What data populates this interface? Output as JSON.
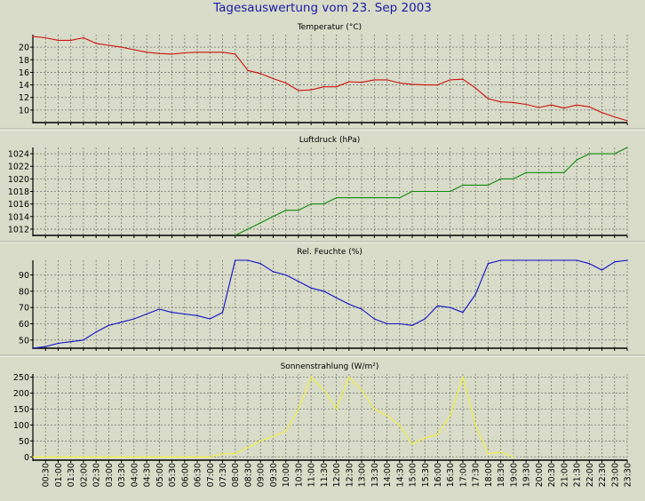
{
  "page_title": "Tagesauswertung vom 23. Sep 2003",
  "colors": {
    "background": "#d8dcc8",
    "plot_background": "#d8dcc8",
    "title": "#1a1aa8",
    "grid": "#7a7a7a",
    "axis": "#000000",
    "separator": "#a8ac98"
  },
  "x_ticks": [
    "00:30",
    "01:00",
    "01:30",
    "02:00",
    "02:30",
    "03:00",
    "03:30",
    "04:00",
    "04:30",
    "05:00",
    "05:30",
    "06:00",
    "06:30",
    "07:00",
    "07:30",
    "08:00",
    "08:30",
    "09:00",
    "09:30",
    "10:00",
    "10:30",
    "11:00",
    "11:30",
    "12:00",
    "12:30",
    "13:00",
    "13:30",
    "14:00",
    "14:30",
    "15:00",
    "15:30",
    "16:00",
    "16:30",
    "17:00",
    "17:30",
    "18:00",
    "18:30",
    "19:00",
    "19:30",
    "20:00",
    "20:30",
    "21:00",
    "21:30",
    "22:00",
    "22:30",
    "23:00",
    "23:30"
  ],
  "chart_data": [
    {
      "type": "line",
      "title": "Temperatur (°C)",
      "ylim": [
        8,
        22
      ],
      "yticks": [
        10,
        12,
        14,
        16,
        18,
        20
      ],
      "grid": true,
      "series": [
        {
          "color": "#d01010",
          "x": [
            "00:00",
            "00:30",
            "01:00",
            "01:30",
            "02:00",
            "02:30",
            "03:00",
            "03:30",
            "04:00",
            "04:30",
            "05:00",
            "05:30",
            "06:00",
            "06:30",
            "07:00",
            "07:30",
            "08:00",
            "08:30",
            "09:00",
            "09:30",
            "10:00",
            "10:30",
            "11:00",
            "11:30",
            "12:00",
            "12:30",
            "13:00",
            "13:30",
            "14:00",
            "14:30",
            "15:00",
            "15:30",
            "16:00",
            "16:30",
            "17:00",
            "17:30",
            "18:00",
            "18:30",
            "19:00",
            "19:30",
            "20:00",
            "20:30",
            "21:00",
            "21:30",
            "22:00",
            "22:30",
            "23:00",
            "23:30"
          ],
          "values": [
            21.7,
            21.5,
            21.1,
            21.1,
            21.5,
            20.6,
            20.3,
            20.0,
            19.6,
            19.2,
            19.0,
            18.9,
            19.1,
            19.2,
            19.2,
            19.2,
            18.9,
            16.3,
            15.8,
            15.0,
            14.3,
            13.1,
            13.2,
            13.7,
            13.7,
            14.5,
            14.4,
            14.8,
            14.8,
            14.3,
            14.1,
            14.0,
            14.0,
            14.8,
            14.9,
            13.5,
            11.8,
            11.3,
            11.2,
            10.9,
            10.4,
            10.8,
            10.3,
            10.8,
            10.5,
            9.6,
            8.9,
            8.3
          ]
        }
      ]
    },
    {
      "type": "line",
      "title": "Luftdruck (hPa)",
      "ylim": [
        1011,
        1025
      ],
      "yticks": [
        1012,
        1014,
        1016,
        1018,
        1020,
        1022,
        1024
      ],
      "grid": true,
      "series": [
        {
          "color": "#108a10",
          "x": [
            "08:00",
            "08:30",
            "09:00",
            "09:30",
            "10:00",
            "10:30",
            "11:00",
            "11:30",
            "12:00",
            "12:30",
            "13:00",
            "13:30",
            "14:00",
            "14:30",
            "15:00",
            "15:30",
            "16:00",
            "16:30",
            "17:00",
            "17:30",
            "18:00",
            "18:30",
            "19:00",
            "19:30",
            "20:00",
            "20:30",
            "21:00",
            "21:30",
            "22:00",
            "22:30",
            "23:00",
            "23:30"
          ],
          "values": [
            1011,
            1012,
            1013,
            1014,
            1015,
            1015,
            1016,
            1016,
            1017,
            1017,
            1017,
            1017,
            1017,
            1017,
            1018,
            1018,
            1018,
            1018,
            1019,
            1019,
            1019,
            1020,
            1020,
            1021,
            1021,
            1021,
            1021,
            1023,
            1024,
            1024,
            1024,
            1025
          ]
        }
      ]
    },
    {
      "type": "line",
      "title": "Rel. Feuchte (%)",
      "ylim": [
        45,
        99
      ],
      "yticks": [
        50,
        60,
        70,
        80,
        90
      ],
      "grid": true,
      "series": [
        {
          "color": "#1010c8",
          "x": [
            "00:00",
            "00:30",
            "01:00",
            "01:30",
            "02:00",
            "02:30",
            "03:00",
            "03:30",
            "04:00",
            "04:30",
            "05:00",
            "05:30",
            "06:00",
            "06:30",
            "07:00",
            "07:30",
            "08:00",
            "08:30",
            "09:00",
            "09:30",
            "10:00",
            "10:30",
            "11:00",
            "11:30",
            "12:00",
            "12:30",
            "13:00",
            "13:30",
            "14:00",
            "14:30",
            "15:00",
            "15:30",
            "16:00",
            "16:30",
            "17:00",
            "17:30",
            "18:00",
            "18:30",
            "19:00",
            "19:30",
            "20:00",
            "20:30",
            "21:00",
            "21:30",
            "22:00",
            "22:30",
            "23:00",
            "23:30"
          ],
          "values": [
            45,
            46,
            48,
            49,
            50,
            55,
            59,
            61,
            63,
            66,
            69,
            67,
            66,
            65,
            63,
            67,
            99,
            99,
            97,
            92,
            90,
            86,
            82,
            80,
            76,
            72,
            69,
            63,
            60,
            60,
            59,
            63,
            71,
            70,
            67,
            78,
            97,
            99,
            99,
            99,
            99,
            99,
            99,
            99,
            97,
            93,
            98,
            99
          ]
        }
      ]
    },
    {
      "type": "line",
      "title": "Sonnenstrahlung (W/m²)",
      "ylim": [
        -10,
        260
      ],
      "yticks": [
        0,
        50,
        100,
        150,
        200,
        250
      ],
      "grid": true,
      "series": [
        {
          "color": "#f2f23c",
          "x": [
            "00:00",
            "00:30",
            "01:00",
            "01:30",
            "02:00",
            "02:30",
            "03:00",
            "03:30",
            "04:00",
            "04:30",
            "05:00",
            "05:30",
            "06:00",
            "06:30",
            "07:00",
            "07:30",
            "08:00",
            "08:30",
            "09:00",
            "09:30",
            "10:00",
            "10:30",
            "11:00",
            "11:30",
            "12:00",
            "12:30",
            "13:00",
            "13:30",
            "14:00",
            "14:30",
            "15:00",
            "15:30",
            "16:00",
            "16:30",
            "17:00",
            "17:30",
            "18:00",
            "18:30",
            "19:00"
          ],
          "values": [
            0,
            0,
            0,
            0,
            0,
            0,
            0,
            0,
            0,
            0,
            0,
            0,
            0,
            0,
            0,
            10,
            10,
            30,
            50,
            65,
            80,
            150,
            250,
            210,
            150,
            250,
            210,
            150,
            130,
            100,
            40,
            60,
            70,
            130,
            250,
            100,
            10,
            15,
            0
          ]
        }
      ]
    }
  ]
}
